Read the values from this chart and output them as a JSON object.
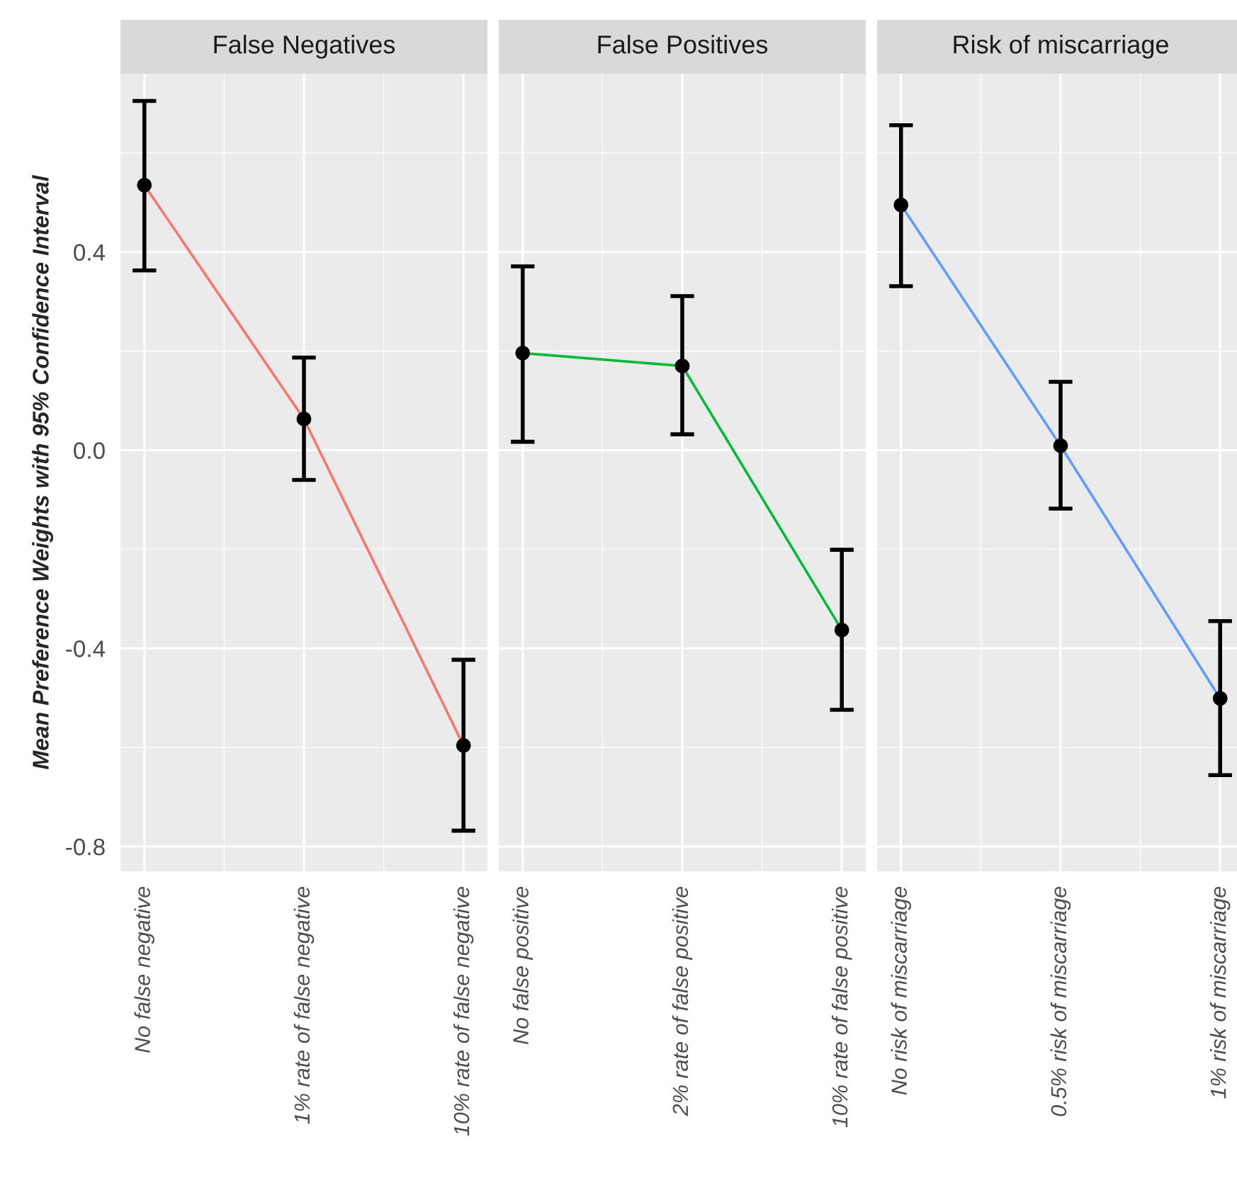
{
  "chart_data": [
    {
      "type": "line",
      "title": "False Negatives",
      "ylabel": "Mean Preference Weights with 95% Confidence Interval",
      "categories": [
        "No false negative",
        "1% rate of false negative",
        "10% rate of false negative"
      ],
      "ylim": [
        -0.85,
        0.76
      ],
      "yticks": [
        {
          "value": -0.8,
          "label": "-0.8"
        },
        {
          "value": -0.4,
          "label": "-0.4"
        },
        {
          "value": 0.0,
          "label": "0.0"
        },
        {
          "value": 0.4,
          "label": "0.4"
        }
      ],
      "grid": true,
      "marker": "circle",
      "line_style": "solid",
      "series": [
        {
          "color": "#f8766d",
          "values": [
            0.535,
            0.063,
            -0.596
          ],
          "errors": [
            [
              0.363,
              0.705
            ],
            [
              -0.06,
              0.187
            ],
            [
              -0.768,
              -0.423
            ]
          ]
        }
      ]
    },
    {
      "type": "line",
      "title": "False Positives",
      "categories": [
        "No false positive",
        "2% rate of false positive",
        "10% rate of false positive"
      ],
      "ylim": [
        -0.85,
        0.76
      ],
      "yticks": [
        -0.8,
        -0.4,
        0,
        0.4
      ],
      "tick_labels": "x",
      "grid": true,
      "marker": "circle",
      "line_style": "solid",
      "series": [
        {
          "color": "#00ba38",
          "values": [
            0.196,
            0.17,
            -0.363
          ],
          "errors": [
            [
              0.017,
              0.371
            ],
            [
              0.032,
              0.311
            ],
            [
              -0.524,
              -0.201
            ]
          ]
        }
      ]
    },
    {
      "type": "line",
      "title": "Risk of miscarriage",
      "categories": [
        "No risk of miscarriage",
        "0.5% risk of miscarriage",
        "1% risk of miscarriage"
      ],
      "ylim": [
        -0.85,
        0.76
      ],
      "yticks": [
        -0.8,
        -0.4,
        0,
        0.4
      ],
      "tick_labels": "x",
      "grid": true,
      "marker": "circle",
      "line_style": "solid",
      "series": [
        {
          "color": "#619cff",
          "values": [
            0.495,
            0.009,
            -0.501
          ],
          "errors": [
            [
              0.331,
              0.656
            ],
            [
              -0.118,
              0.138
            ],
            [
              -0.656,
              -0.345
            ]
          ]
        }
      ]
    }
  ]
}
